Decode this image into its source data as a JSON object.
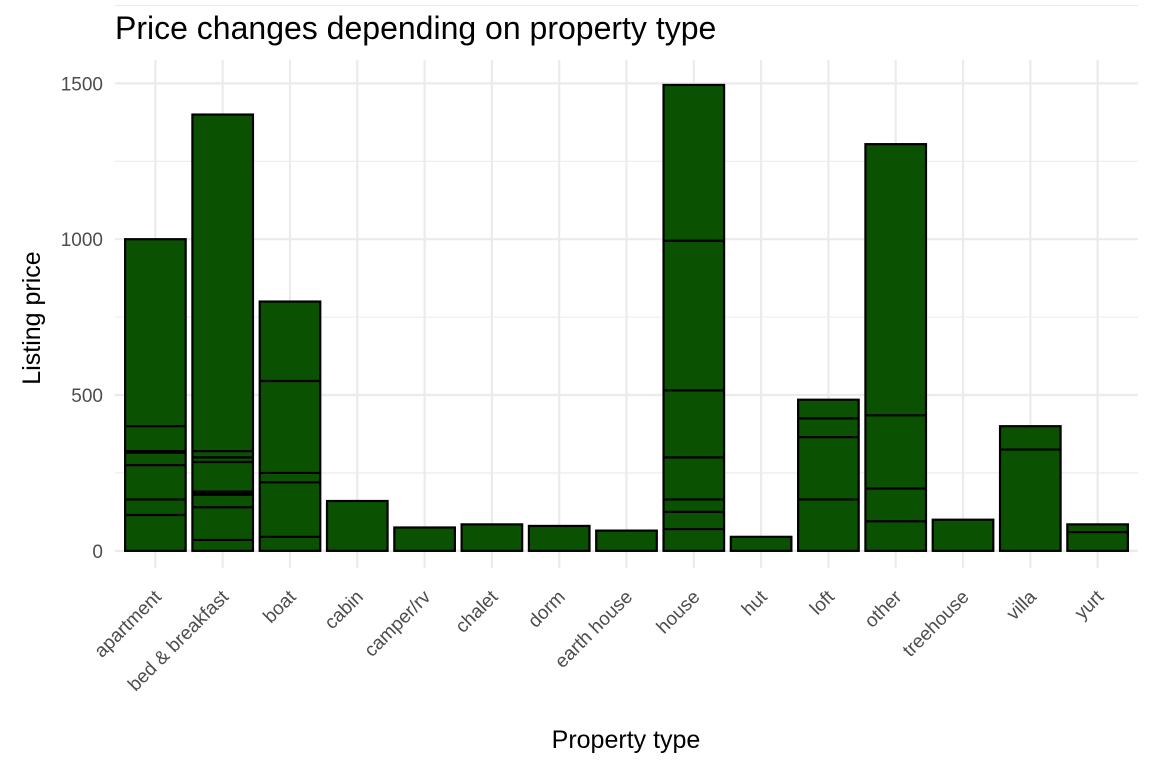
{
  "chart_data": {
    "type": "bar",
    "title": "Price changes depending on property type",
    "xlabel": "Property type",
    "ylabel": "Listing price",
    "ylim": [
      -55,
      1575
    ],
    "yticks": [
      0,
      500,
      1000,
      1500
    ],
    "grid": true,
    "fill_color": "#0b5102",
    "outline_color": "#000000",
    "categories": [
      "apartment",
      "bed & breakfast",
      "boat",
      "cabin",
      "camper/rv",
      "chalet",
      "dorm",
      "earth house",
      "house",
      "hut",
      "loft",
      "other",
      "treehouse",
      "villa",
      "yurt"
    ],
    "values": [
      1000,
      1400,
      800,
      160,
      75,
      85,
      80,
      65,
      1495,
      45,
      485,
      1305,
      100,
      400,
      85
    ],
    "segments": [
      [
        0,
        115,
        165,
        275,
        315,
        320,
        400,
        1000
      ],
      [
        0,
        35,
        140,
        180,
        185,
        190,
        285,
        300,
        320,
        1400
      ],
      [
        0,
        45,
        220,
        250,
        545,
        800
      ],
      [
        0,
        160
      ],
      [
        0,
        75
      ],
      [
        0,
        85
      ],
      [
        0,
        80
      ],
      [
        0,
        65
      ],
      [
        0,
        70,
        125,
        165,
        300,
        515,
        995,
        1495
      ],
      [
        0,
        45
      ],
      [
        0,
        165,
        365,
        425,
        485
      ],
      [
        0,
        95,
        200,
        435,
        1305
      ],
      [
        0,
        100
      ],
      [
        0,
        325,
        400
      ],
      [
        0,
        60,
        85
      ]
    ]
  }
}
